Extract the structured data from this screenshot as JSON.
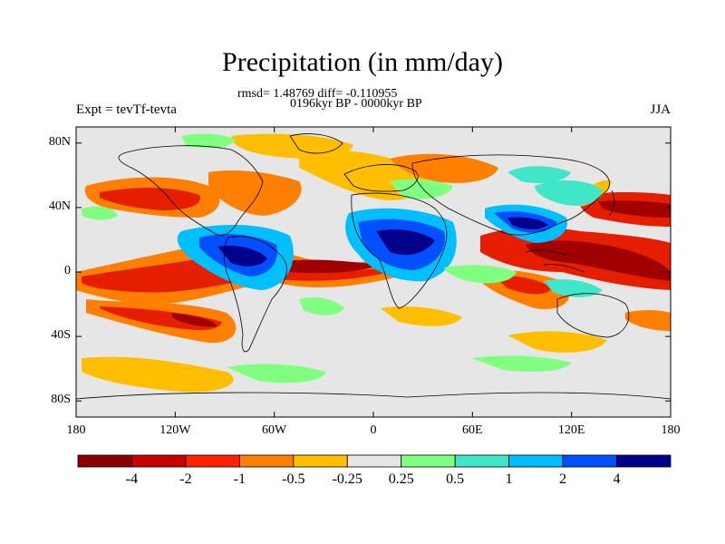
{
  "title": "Precipitation (in mm/day)",
  "stats": "rmsd= 1.48769 diff= -0.110955",
  "period": "0196kyr BP - 0000kyr BP",
  "experiment": "Expt = tevTf-tevta",
  "season": "JJA",
  "y_ticks": [
    {
      "label": "80N",
      "lat": 80
    },
    {
      "label": "40N",
      "lat": 40
    },
    {
      "label": "0",
      "lat": 0
    },
    {
      "label": "40S",
      "lat": -40
    },
    {
      "label": "80S",
      "lat": -80
    }
  ],
  "x_ticks": [
    {
      "label": "180",
      "lon": -180
    },
    {
      "label": "120W",
      "lon": -120
    },
    {
      "label": "60W",
      "lon": -60
    },
    {
      "label": "0",
      "lon": 0
    },
    {
      "label": "60E",
      "lon": 60
    },
    {
      "label": "120E",
      "lon": 120
    },
    {
      "label": "180",
      "lon": 180
    }
  ],
  "colorbar": {
    "colors": [
      "#8b0000",
      "#c80000",
      "#ff2200",
      "#ff7f00",
      "#ffbf00",
      "#e6e6e6",
      "#80ff80",
      "#40e6c8",
      "#00bfff",
      "#0050ff",
      "#00008b"
    ],
    "labels": [
      "-4",
      "-2",
      "-1",
      "-0.5",
      "-0.25",
      "0.25",
      "0.5",
      "1",
      "2",
      "4"
    ]
  },
  "colors": {
    "dry_strong": "#a00000",
    "dry": "#e61e00",
    "dry_mid": "#ff7f00",
    "dry_weak": "#ffbf00",
    "neutral": "#e6e6e6",
    "wet_weak": "#80ff80",
    "wet": "#40e6c8",
    "wet_mid": "#00bfff",
    "wet_strong": "#0050ff",
    "wet_max": "#00008b"
  }
}
